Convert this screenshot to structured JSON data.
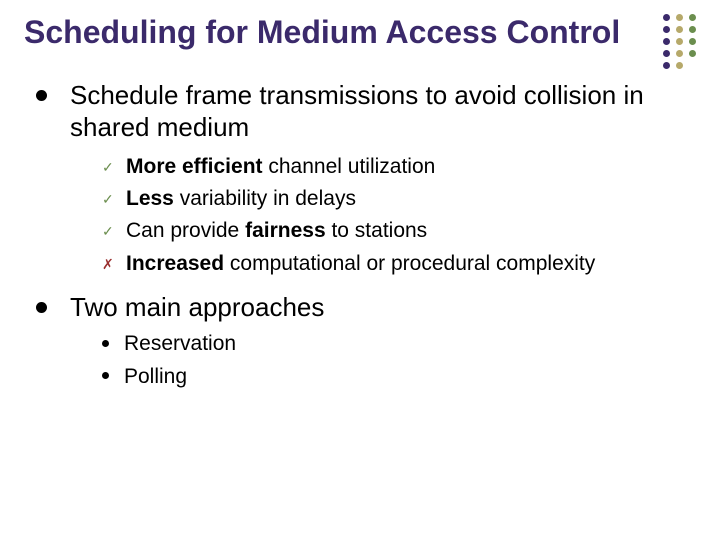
{
  "title_color": "#3b2a6b",
  "deco": {
    "columns": [
      [
        "#3b2a6b",
        "#3b2a6b",
        "#3b2a6b",
        "#3b2a6b",
        "#3b2a6b"
      ],
      [
        "#b6a96a",
        "#b6a96a",
        "#b6a96a",
        "#b6a96a",
        "#b6a96a"
      ],
      [
        "#6b8e4e",
        "#6b8e4e",
        "#6b8e4e",
        "#6b8e4e"
      ]
    ]
  },
  "title": "Scheduling for Medium Access Control",
  "bullets": [
    {
      "text": "Schedule frame transmissions to avoid collision in shared medium",
      "children": [
        {
          "mark": "check",
          "mark_color": "#6b8e4e",
          "segments": [
            {
              "t": "More efficient",
              "b": true
            },
            {
              "t": " channel utilization"
            }
          ]
        },
        {
          "mark": "check",
          "mark_color": "#6b8e4e",
          "segments": [
            {
              "t": "Less",
              "b": true
            },
            {
              "t": " variability in delays"
            }
          ]
        },
        {
          "mark": "check",
          "mark_color": "#6b8e4e",
          "segments": [
            {
              "t": "Can provide "
            },
            {
              "t": "fairness",
              "b": true
            },
            {
              "t": " to stations"
            }
          ]
        },
        {
          "mark": "cross",
          "mark_color": "#9a2f2f",
          "segments": [
            {
              "t": "Increased",
              "b": true
            },
            {
              "t": " computational or procedural complexity"
            }
          ]
        }
      ]
    },
    {
      "text": "Two main approaches",
      "children3": [
        {
          "text": "Reservation"
        },
        {
          "text": "Polling"
        }
      ]
    }
  ],
  "marks": {
    "check": "✓",
    "cross": "✗"
  }
}
